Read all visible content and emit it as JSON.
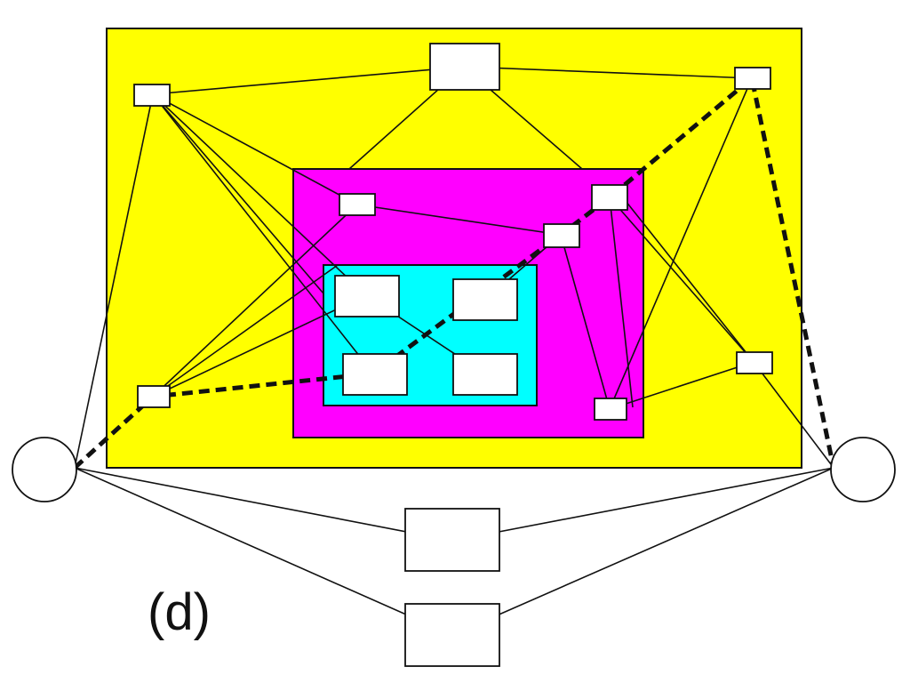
{
  "figure": {
    "label": "(d)",
    "colors": {
      "outer_region": "#ffff00",
      "middle_region": "#ff00ff",
      "inner_region": "#00ffff",
      "node_fill": "#ffffff",
      "stroke": "#111111"
    },
    "regions": [
      {
        "id": "outer",
        "color": "outer_region"
      },
      {
        "id": "middle",
        "color": "middle_region"
      },
      {
        "id": "inner",
        "color": "inner_region"
      }
    ],
    "nodes": [
      {
        "id": "top-center"
      },
      {
        "id": "top-left"
      },
      {
        "id": "top-right"
      },
      {
        "id": "left-mid"
      },
      {
        "id": "right-mid"
      },
      {
        "id": "magenta-a"
      },
      {
        "id": "magenta-b"
      },
      {
        "id": "magenta-c"
      },
      {
        "id": "magenta-d"
      },
      {
        "id": "cyan-tl"
      },
      {
        "id": "cyan-tr"
      },
      {
        "id": "cyan-bl"
      },
      {
        "id": "cyan-br"
      },
      {
        "id": "bottom-1"
      },
      {
        "id": "bottom-2"
      },
      {
        "id": "left-circle",
        "shape": "circle"
      },
      {
        "id": "right-circle",
        "shape": "circle"
      }
    ],
    "edges": [
      {
        "from": "top-left",
        "to": "top-center",
        "style": "solid"
      },
      {
        "from": "top-center",
        "to": "top-right",
        "style": "solid"
      },
      {
        "from": "top-center",
        "to": "middle-top-left-corner",
        "style": "solid"
      },
      {
        "from": "top-center",
        "to": "middle-top-right-corner",
        "style": "solid"
      },
      {
        "from": "top-left",
        "to": "left-circle",
        "style": "solid"
      },
      {
        "from": "top-left",
        "to": "magenta-a",
        "style": "solid"
      },
      {
        "from": "top-left",
        "to": "cyan-bl",
        "style": "solid"
      },
      {
        "from": "top-left",
        "to": "right-mid",
        "style": "solid"
      },
      {
        "from": "top-left",
        "to": "cyan-tl",
        "style": "solid"
      },
      {
        "from": "left-mid",
        "to": "magenta-a",
        "style": "solid"
      },
      {
        "from": "left-mid",
        "to": "cyan-tl",
        "style": "solid"
      },
      {
        "from": "left-mid",
        "to": "top-right",
        "style": "solid"
      },
      {
        "from": "magenta-a",
        "to": "magenta-b",
        "style": "solid"
      },
      {
        "from": "magenta-b",
        "to": "magenta-d",
        "style": "solid"
      },
      {
        "from": "magenta-c",
        "to": "magenta-d",
        "style": "solid"
      },
      {
        "from": "magenta-c",
        "to": "right-mid",
        "style": "solid"
      },
      {
        "from": "magenta-d",
        "to": "right-mid",
        "style": "solid"
      },
      {
        "from": "magenta-d",
        "to": "top-right",
        "style": "solid"
      },
      {
        "from": "cyan-tl",
        "to": "cyan-br",
        "style": "solid"
      },
      {
        "from": "cyan-tr",
        "to": "magenta-b",
        "style": "solid"
      },
      {
        "from": "right-mid",
        "to": "right-circle",
        "style": "solid"
      },
      {
        "from": "left-circle",
        "to": "bottom-1",
        "style": "solid"
      },
      {
        "from": "left-circle",
        "to": "bottom-2",
        "style": "solid"
      },
      {
        "from": "right-circle",
        "to": "bottom-1",
        "style": "solid"
      },
      {
        "from": "right-circle",
        "to": "bottom-2",
        "style": "solid"
      },
      {
        "from": "left-circle",
        "to": "left-mid",
        "style": "dashed"
      },
      {
        "from": "left-mid",
        "to": "cyan-bl",
        "style": "dashed"
      },
      {
        "from": "cyan-bl",
        "to": "magenta-b",
        "style": "dashed"
      },
      {
        "from": "magenta-b",
        "to": "magenta-c",
        "style": "dashed"
      },
      {
        "from": "magenta-c",
        "to": "top-right",
        "style": "dashed"
      },
      {
        "from": "top-right",
        "to": "right-circle",
        "style": "dashed"
      }
    ]
  }
}
